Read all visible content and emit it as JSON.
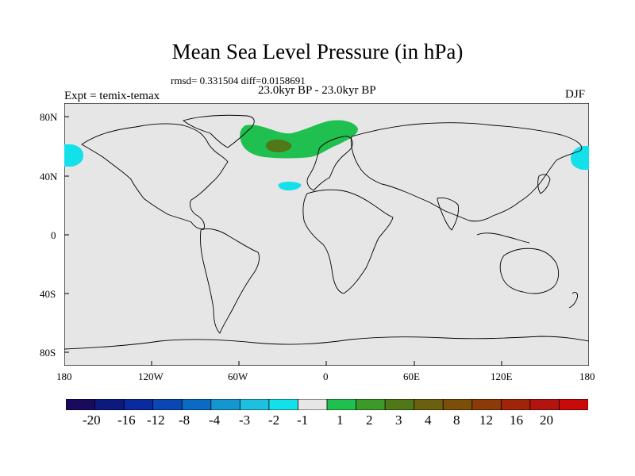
{
  "title": "Mean Sea Level Pressure (in hPa)",
  "stats": {
    "rmsd_label": "rmsd=",
    "rmsd": "0.331504",
    "diff_label": "diff=",
    "diff": "0.0158691"
  },
  "period": "23.0kyr BP - 23.0kyr BP",
  "experiment": "Expt = temix-temax",
  "season": "DJF",
  "map": {
    "latitude_labels": [
      "80N",
      "40N",
      "0",
      "40S",
      "80S"
    ],
    "longitude_labels": [
      "180",
      "120W",
      "60W",
      "0",
      "60E",
      "120E",
      "180"
    ],
    "background_color": "#e6e6e6",
    "coast_color": "#000000"
  },
  "colorbar": {
    "colors": [
      "#1a0a5e",
      "#0c1a80",
      "#0a2aa0",
      "#0a46b4",
      "#0a6ac4",
      "#1496d2",
      "#1ec0e2",
      "#14e0ea",
      "#e6e6e6",
      "#20c050",
      "#3c9a28",
      "#507818",
      "#6a6010",
      "#7a5008",
      "#8c3a08",
      "#a02408",
      "#b41410",
      "#c80a0a"
    ],
    "labels": [
      "-20",
      "-16",
      "-12",
      "-8",
      "-4",
      "-3",
      "-2",
      "-1",
      "1",
      "2",
      "3",
      "4",
      "8",
      "12",
      "16",
      "20"
    ]
  }
}
